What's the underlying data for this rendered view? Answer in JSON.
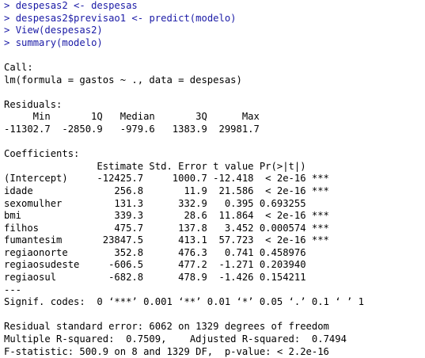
{
  "colors": {
    "command": "#1a1aa6",
    "output": "#000000",
    "background": "#ffffff"
  },
  "commands": [
    {
      "prompt": ">",
      "text": "despesas2 <- despesas"
    },
    {
      "prompt": ">",
      "text": "despesas2$previsao1 <- predict(modelo)"
    },
    {
      "prompt": ">",
      "text": "View(despesas2)"
    },
    {
      "prompt": ">",
      "text": "summary(modelo)"
    }
  ],
  "output": {
    "call_header": "Call:",
    "call_text": "lm(formula = gastos ~ ., data = despesas)",
    "residuals_header": "Residuals:",
    "residuals_labels": "     Min       1Q   Median       3Q      Max ",
    "residuals_values": "-11302.7  -2850.9   -979.6   1383.9  29981.7 ",
    "coef_header": "Coefficients:",
    "coef_columns": "                Estimate Std. Error t value Pr(>|t|)    ",
    "coef_rows": [
      "(Intercept)     -12425.7     1000.7 -12.418  < 2e-16 ***",
      "idade              256.8       11.9  21.586  < 2e-16 ***",
      "sexomulher         131.3      332.9   0.395 0.693255    ",
      "bmi                339.3       28.6  11.864  < 2e-16 ***",
      "filhos             475.7      137.8   3.452 0.000574 ***",
      "fumantesim       23847.5      413.1  57.723  < 2e-16 ***",
      "regiaonorte        352.8      476.3   0.741 0.458976    ",
      "regiaosudeste     -606.5      477.2  -1.271 0.203940    ",
      "regiaosul         -682.8      478.9  -1.426 0.154211    "
    ],
    "separator": "---",
    "signif_codes": "Signif. codes:  0 ‘***’ 0.001 ‘**’ 0.01 ‘*’ 0.05 ‘.’ 0.1 ‘ ’ 1",
    "residual_se": "Residual standard error: 6062 on 1329 degrees of freedom",
    "r_squared": "Multiple R-squared:  0.7509,\tAdjusted R-squared:  0.7494 ",
    "f_statistic": "F-statistic: 500.9 on 8 and 1329 DF,  p-value: < 2.2e-16"
  }
}
